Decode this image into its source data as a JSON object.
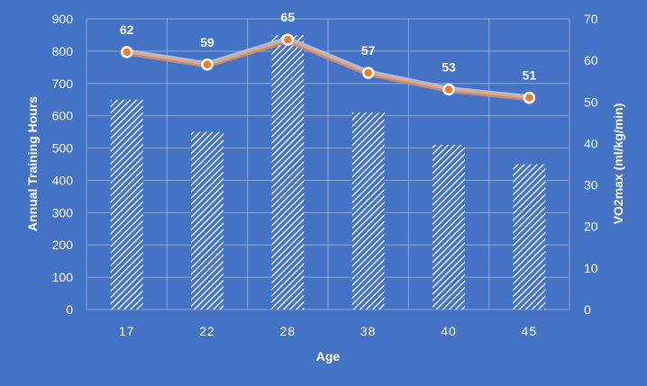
{
  "chart_data": {
    "type": "bar+line",
    "title": "",
    "xlabel": "Age",
    "ylabel_left": "Annual Training Hours",
    "ylabel_right": "VO2max (ml/kg/min)",
    "categories": [
      "17",
      "22",
      "28",
      "38",
      "40",
      "45"
    ],
    "ylim_left": [
      0,
      900
    ],
    "yticks_left": [
      0,
      100,
      200,
      300,
      400,
      500,
      600,
      700,
      800,
      900
    ],
    "ylim_right": [
      0,
      70
    ],
    "yticks_right": [
      0,
      10,
      20,
      30,
      40,
      50,
      60,
      70
    ],
    "grid": true,
    "legend": "none",
    "series": [
      {
        "type": "bar",
        "axis": "left",
        "values": [
          650,
          550,
          850,
          610,
          510,
          450
        ],
        "pattern": "diagonal-hatch"
      },
      {
        "type": "line",
        "axis": "right",
        "values": [
          62,
          59,
          65,
          57,
          53,
          51
        ],
        "data_labels": true
      }
    ],
    "colors": {
      "background": "#4472c4",
      "text": "#ffffff",
      "grid": "#8eaadb",
      "bar_hatch": "#ffffff",
      "line": "#e7a57b",
      "line_glow": "#b4c7e7",
      "marker_fill": "#ed7d31",
      "marker_stroke": "#ffffff"
    }
  }
}
